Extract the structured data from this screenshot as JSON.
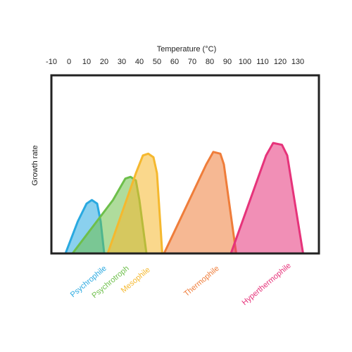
{
  "chart_data": {
    "type": "area",
    "x_label": "Temperature (°C)",
    "y_label": "Growth rate",
    "xlim": [
      -10,
      142
    ],
    "xticks": [
      -10,
      0,
      10,
      20,
      30,
      40,
      50,
      60,
      70,
      80,
      90,
      100,
      110,
      120,
      130
    ],
    "ylim": [
      0,
      100
    ],
    "series": [
      {
        "name": "Psychrophile",
        "color": "#29a9e0",
        "x": [
          -2,
          5,
          10,
          13,
          16,
          18,
          20
        ],
        "values": [
          0,
          18,
          28,
          30,
          28,
          18,
          0
        ]
      },
      {
        "name": "Psychrotroph",
        "color": "#6dbf4a",
        "x": [
          2,
          25,
          32,
          35,
          38,
          40,
          44
        ],
        "values": [
          0,
          30,
          42,
          43,
          41,
          30,
          0
        ]
      },
      {
        "name": "Mesophile",
        "color": "#f5b82e",
        "x": [
          22,
          38,
          42,
          45,
          48,
          50,
          53
        ],
        "values": [
          0,
          45,
          55,
          56,
          54,
          45,
          0
        ]
      },
      {
        "name": "Thermophile",
        "color": "#ef7d3a",
        "x": [
          54,
          78,
          82,
          86,
          88,
          95
        ],
        "values": [
          0,
          50,
          57,
          56,
          50,
          0
        ]
      },
      {
        "name": "Hyperthermophile",
        "color": "#e6337a",
        "x": [
          92,
          112,
          116,
          121,
          124,
          133
        ],
        "values": [
          0,
          55,
          62,
          61,
          55,
          0
        ]
      }
    ]
  }
}
